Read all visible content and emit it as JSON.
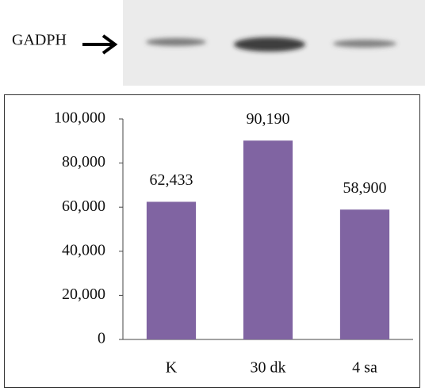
{
  "chart_data": {
    "type": "bar",
    "annotations": [
      "GADPH"
    ],
    "categories": [
      "K",
      "30 dk",
      "4 sa"
    ],
    "values": [
      62433,
      90190,
      58900
    ],
    "value_labels": [
      "62,433",
      "90,190",
      "58,900"
    ],
    "color": "#8064a2",
    "ylim": [
      0,
      100000
    ],
    "yticks": [
      0,
      {
        "value": 20000,
        "label": "20,000"
      },
      {
        "value": 40000,
        "label": "40,000"
      },
      {
        "value": 60000,
        "label": "60,000"
      },
      {
        "value": 80000,
        "label": "80,000"
      },
      {
        "value": 100000,
        "label": "100,000"
      }
    ],
    "grid": false
  }
}
